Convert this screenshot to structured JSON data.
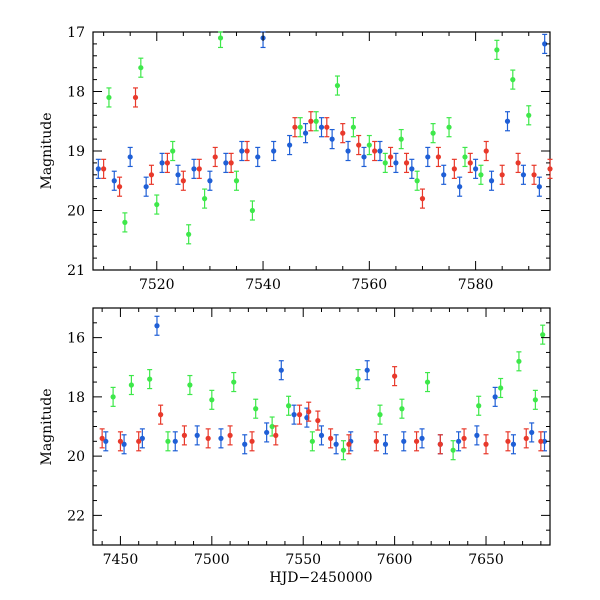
{
  "colors": {
    "blue": "#1f5fd6",
    "red": "#e8392b",
    "green": "#3ee84a"
  },
  "chart_data": [
    {
      "type": "scatter",
      "title": "",
      "xlabel": "",
      "ylabel": "Magnitude",
      "xlim": [
        7508,
        7594
      ],
      "ylim": [
        21,
        17
      ],
      "inverted_y": true,
      "xticks": [
        7520,
        7540,
        7560,
        7580
      ],
      "yticks": [
        17,
        18,
        19,
        20,
        21
      ],
      "xtick_labels": [
        "7520",
        "7540",
        "7560",
        "7580"
      ],
      "ytick_labels": [
        "17",
        "18",
        "19",
        "20",
        "21"
      ],
      "series": [
        {
          "name": "blue",
          "color": "#1f5fd6",
          "x": [
            7509,
            7512,
            7515,
            7518,
            7521,
            7524,
            7527,
            7530,
            7533,
            7536,
            7539,
            7540,
            7542,
            7545,
            7548,
            7551,
            7553,
            7556,
            7559,
            7562,
            7565,
            7568,
            7571,
            7574,
            7577,
            7580,
            7583,
            7586,
            7589,
            7592,
            7593
          ],
          "y": [
            19.3,
            19.5,
            19.1,
            19.6,
            19.2,
            19.4,
            19.3,
            19.5,
            19.2,
            19.0,
            19.1,
            17.1,
            19.0,
            18.9,
            18.7,
            18.6,
            18.8,
            19.0,
            19.1,
            19.0,
            19.2,
            19.3,
            19.1,
            19.4,
            19.6,
            19.3,
            19.5,
            18.5,
            19.4,
            19.6,
            17.2
          ]
        },
        {
          "name": "red",
          "color": "#e8392b",
          "x": [
            7510,
            7513,
            7516,
            7519,
            7522,
            7525,
            7528,
            7531,
            7534,
            7537,
            7546,
            7549,
            7552,
            7555,
            7558,
            7561,
            7564,
            7567,
            7570,
            7573,
            7576,
            7579,
            7582,
            7585,
            7588,
            7591,
            7594
          ],
          "y": [
            19.3,
            19.6,
            18.1,
            19.4,
            19.2,
            19.5,
            19.3,
            19.1,
            19.2,
            19.0,
            18.6,
            18.5,
            18.6,
            18.7,
            18.9,
            19.0,
            19.1,
            19.2,
            19.8,
            19.1,
            19.3,
            19.2,
            19.0,
            19.4,
            19.2,
            19.4,
            19.3
          ]
        },
        {
          "name": "green",
          "color": "#3ee84a",
          "x": [
            7511,
            7514,
            7517,
            7520,
            7523,
            7526,
            7529,
            7532,
            7535,
            7538,
            7547,
            7550,
            7554,
            7557,
            7560,
            7563,
            7566,
            7569,
            7572,
            7575,
            7578,
            7581,
            7584,
            7587,
            7590
          ],
          "y": [
            18.1,
            20.2,
            17.6,
            19.9,
            19.0,
            20.4,
            19.8,
            17.1,
            19.5,
            20.0,
            18.6,
            18.5,
            17.9,
            18.6,
            18.9,
            19.2,
            18.8,
            19.5,
            18.7,
            18.6,
            19.1,
            19.4,
            17.3,
            17.8,
            18.4
          ]
        }
      ]
    },
    {
      "type": "scatter",
      "title": "",
      "xlabel": "HJD−2450000",
      "ylabel": "Magnitude",
      "xlim": [
        7435,
        7685
      ],
      "ylim": [
        23,
        15
      ],
      "inverted_y": true,
      "xticks": [
        7450,
        7500,
        7550,
        7600,
        7650
      ],
      "yticks": [
        16,
        18,
        20,
        22
      ],
      "xtick_labels": [
        "7450",
        "7500",
        "7550",
        "7600",
        "7650"
      ],
      "ytick_labels": [
        "16",
        "18",
        "20",
        "22"
      ],
      "series": [
        {
          "name": "blue",
          "color": "#1f5fd6",
          "x": [
            7442,
            7452,
            7462,
            7470,
            7480,
            7492,
            7505,
            7518,
            7530,
            7538,
            7545,
            7552,
            7560,
            7568,
            7576,
            7585,
            7595,
            7605,
            7615,
            7625,
            7635,
            7645,
            7655,
            7665,
            7675,
            7682
          ],
          "y": [
            19.5,
            19.6,
            19.4,
            15.6,
            19.5,
            19.3,
            19.4,
            19.6,
            19.2,
            17.1,
            18.6,
            18.7,
            19.3,
            19.6,
            19.5,
            17.1,
            19.6,
            19.5,
            19.4,
            19.6,
            19.5,
            19.3,
            18.0,
            19.6,
            19.2,
            19.5
          ]
        },
        {
          "name": "red",
          "color": "#e8392b",
          "x": [
            7440,
            7450,
            7460,
            7472,
            7485,
            7498,
            7510,
            7522,
            7535,
            7548,
            7553,
            7558,
            7565,
            7575,
            7590,
            7600,
            7612,
            7625,
            7638,
            7650,
            7662,
            7672,
            7680
          ],
          "y": [
            19.4,
            19.5,
            19.5,
            18.6,
            19.3,
            19.4,
            19.3,
            19.5,
            19.3,
            18.6,
            18.5,
            18.8,
            19.4,
            19.6,
            19.5,
            17.3,
            19.5,
            19.6,
            19.4,
            19.6,
            19.5,
            19.4,
            19.5
          ]
        },
        {
          "name": "green",
          "color": "#3ee84a",
          "x": [
            7446,
            7456,
            7466,
            7476,
            7488,
            7500,
            7512,
            7524,
            7533,
            7542,
            7555,
            7572,
            7580,
            7592,
            7604,
            7618,
            7632,
            7646,
            7658,
            7668,
            7677,
            7681
          ],
          "y": [
            18.0,
            17.6,
            17.4,
            19.5,
            17.6,
            18.1,
            17.5,
            18.4,
            19.0,
            18.3,
            19.5,
            19.8,
            17.4,
            18.6,
            18.4,
            17.5,
            19.8,
            18.3,
            17.7,
            16.8,
            18.1,
            15.9
          ]
        }
      ]
    }
  ]
}
